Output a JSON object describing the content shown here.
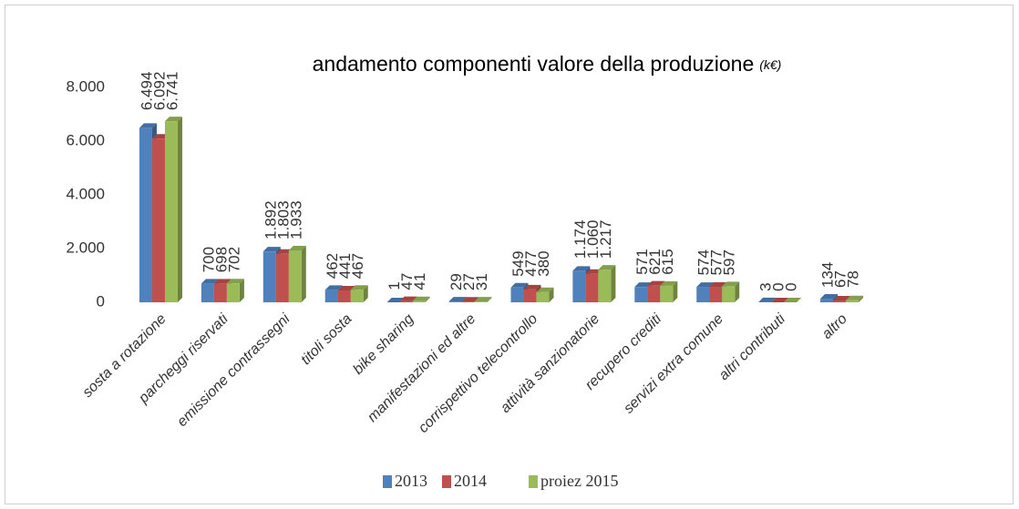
{
  "chart_data": {
    "type": "bar",
    "title": "andamento  componenti valore della produzione",
    "title_unit": "(k€)",
    "categories": [
      "sosta a rotazione",
      "parcheggi riservati",
      "emissione contrassegni",
      "titoli sosta",
      "bike sharing",
      "manifestazioni ed altre",
      "corrispettivo telecontrollo",
      "attività sanzionatorie",
      "recupero crediti",
      "servizi extra comune",
      "altri contributi",
      "altro"
    ],
    "series": [
      {
        "name": "2013",
        "color": "#4f81bd",
        "values": [
          6494,
          700,
          1892,
          462,
          1,
          29,
          549,
          1174,
          571,
          574,
          3,
          134
        ],
        "value_labels": [
          "6.494",
          "700",
          "1.892",
          "462",
          "1",
          "29",
          "549",
          "1.174",
          "571",
          "574",
          "3",
          "134"
        ]
      },
      {
        "name": "2014",
        "color": "#c0504d",
        "values": [
          6092,
          698,
          1803,
          441,
          47,
          27,
          477,
          1060,
          621,
          577,
          0,
          67
        ],
        "value_labels": [
          "6.092",
          "698",
          "1.803",
          "441",
          "47",
          "27",
          "477",
          "1.060",
          "621",
          "577",
          "0",
          "67"
        ]
      },
      {
        "name": "proiez 2015",
        "color": "#9bbb59",
        "values": [
          6741,
          702,
          1933,
          467,
          41,
          31,
          380,
          1217,
          615,
          597,
          0,
          78
        ],
        "value_labels": [
          "6.741",
          "702",
          "1.933",
          "467",
          "41",
          "31",
          "380",
          "1.217",
          "615",
          "597",
          "0",
          "78"
        ]
      }
    ],
    "ylim": [
      0,
      8000
    ],
    "yticks": [
      0,
      {
        "value": 2000,
        "label": "2.000"
      },
      {
        "value": 4000,
        "label": "4.000"
      },
      {
        "value": 6000,
        "label": "6.000"
      },
      {
        "value": 8000,
        "label": "8.000"
      }
    ],
    "grid": false,
    "legend": "bottom"
  }
}
